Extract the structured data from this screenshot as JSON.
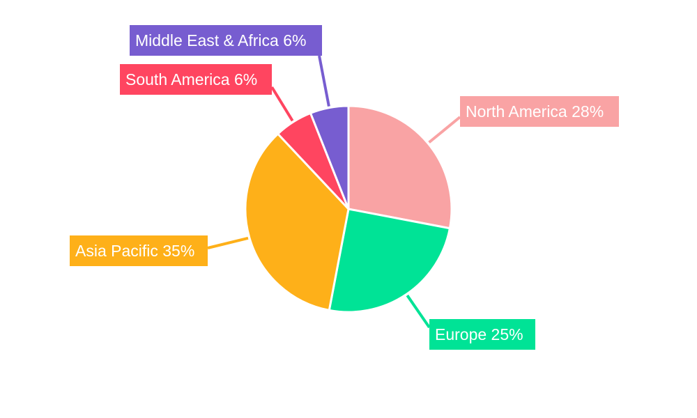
{
  "chart_data": {
    "type": "pie",
    "categories": [
      "North America",
      "Europe",
      "Asia Pacific",
      "South America",
      "Middle East & Africa"
    ],
    "values": [
      28,
      25,
      35,
      6,
      6
    ],
    "colors": [
      "#F9A3A4",
      "#00E396",
      "#FEB019",
      "#FF4560",
      "#775DD0"
    ],
    "labels": [
      "North America 28%",
      "Europe 25%",
      "Asia Pacific 35%",
      "South America 6%",
      "Middle East & Africa 6%"
    ],
    "start_angle": "top, clockwise",
    "legend": "none"
  }
}
